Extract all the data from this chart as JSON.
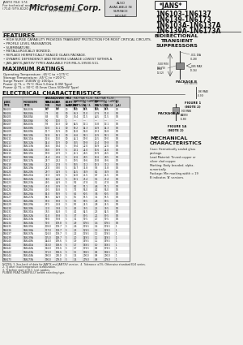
{
  "bg_color": "#f0f0ec",
  "company": "Microsemi Corp.",
  "header_small": "JANTX FILE 174\nFor technical assistance call\n(714) 979-8220",
  "stamp_text": "ALSO\nAVAILABLE IN\nSURFACE\nMOUNT",
  "jans_text": "*JANS*",
  "title_lines": [
    "1N6103-1N6137",
    "1N6139-1N6173",
    "1N6103A-1N6137A",
    "1N6139A-1N6173A"
  ],
  "subtitle": "BIDIRECTIONAL\nTRANSIENT\nSUPPRESSors",
  "features_title": "FEATURES",
  "features": [
    "HIGH SURGE CAPABILITY PROVIDES TRANSIENT PROTECTION FOR MOST CRITICAL CIRCUITS.",
    "PROFILE LEVEL PASSIVATION.",
    "SUBMINIATURE.",
    "METALLURGICALLY BONDED.",
    "REPLACE HERMETICALLY SEALED GLASS PACKAGE.",
    "DYNAMIC DEPENDENCY AND REVERSE LEAKAGE LOWEST WITHIN A.",
    "JAN-JANTX-JANTXV TYPES AVAILABLE FOR MIL-S-19500-511."
  ],
  "max_ratings_title": "MAXIMUM RATINGS",
  "max_ratings": [
    "Operating Temperature: -65°C to +175°C",
    "Storage Temperature: -65°C to +200°C",
    "Surge Power: 1500W @ 1000μs",
    "Power @ TL = 75°C (See 5.0mw 0.0W Type)",
    "Power @ TL = 50°C (0.5mw Class 500mW Type)"
  ],
  "elec_char_title": "ELECTRICAL CHARACTERISTICS",
  "notes": [
    "NOTES: 1. See back of data for JANTX and JANTXV version.  4. Tolerance ±1%. Otherwise standard E24 series.",
    "2. Tj after lead temperature stabilization.",
    "3. Tj before start of D.C. test applies.",
    "PLEASE READ CAREFULLY before selecting type."
  ],
  "mech_title": "MECHANICAL\nCHARACTERISTICS",
  "mech_text": "Case: Hermetically sealed glass\npackage.\nLead Material: Tinned copper or\nsilver clad copper.\nMarking: Body branded, alpha-\nnumerically.\nPackage: Min marking width = 19\nB indicates 'A' versions.",
  "table_col_headers": [
    "JEDEC",
    "MICROSEMI",
    "VBR MIN",
    "VBR MAX",
    "IT",
    "IPP",
    "VC",
    "IPP",
    "VC",
    "IR"
  ],
  "table_col_headers2": [
    "TYPE",
    "TYPE",
    "(V)",
    "(V)",
    "(mA)",
    "(A)",
    "(V)",
    "(A)",
    "(V)",
    "(μA)"
  ],
  "table_rows": [
    [
      "1N6103",
      "1N6103A",
      "6.7",
      "7.5",
      "10",
      "95.2",
      "10.5",
      "52.6",
      "10.5",
      "0.5"
    ],
    [
      "1N6104",
      "1N6104A",
      "7.3",
      "8.1",
      "10",
      "86.3",
      "11.0",
      "47.9",
      "11.0",
      "0.5"
    ],
    [
      "1N6105",
      "1N6105A",
      "8.3",
      "9.1",
      "10",
      "76.4",
      "11.5",
      "42.5",
      "11.5",
      "0.5"
    ],
    [
      "1N6106",
      "1N6106A",
      "9.0",
      "10.0",
      "1",
      "—",
      "—",
      "—",
      "—",
      "—"
    ],
    [
      "1N6107",
      "1N6107A",
      "9.3",
      "10.3",
      "10",
      "64.5",
      "13.1",
      "35.8",
      "13.1",
      "0.5"
    ],
    [
      "1N6108",
      "1N6108A",
      "10.0",
      "11.1",
      "10",
      "59.2",
      "14.3",
      "32.9",
      "14.3",
      "0.5"
    ],
    [
      "1N6109",
      "1N6109A",
      "11.7",
      "12.9",
      "10",
      "52.8",
      "16.8",
      "29.3",
      "16.8",
      "0.5"
    ],
    [
      "1N6110",
      "1N6110A",
      "12.8",
      "14.1",
      "10",
      "46.6",
      "18.1",
      "25.9",
      "18.1",
      "0.5"
    ],
    [
      "1N6111",
      "1N6111A",
      "13.6",
      "15.0",
      "10",
      "44.1",
      "19.0",
      "24.5",
      "19.0",
      "0.5"
    ],
    [
      "1N6112",
      "1N6112A",
      "14.4",
      "15.9",
      "10",
      "38.5",
      "19.8",
      "21.4",
      "19.8",
      "0.5"
    ],
    [
      "1N6113",
      "1N6113A",
      "16.6",
      "18.4",
      "5",
      "30.4",
      "22.0",
      "16.9",
      "22.0",
      "0.5"
    ],
    [
      "1N6114",
      "1N6114A",
      "18.0",
      "19.9",
      "5",
      "28.1",
      "24.0",
      "15.6",
      "24.0",
      "0.5"
    ],
    [
      "1N6115",
      "1N6115A",
      "19.8",
      "21.9",
      "5",
      "25.1",
      "26.5",
      "13.9",
      "26.5",
      "0.5"
    ],
    [
      "1N6116",
      "1N6116A",
      "21.4",
      "23.6",
      "5",
      "22.6",
      "28.5",
      "12.6",
      "28.5",
      "0.5"
    ],
    [
      "1N6117",
      "1N6117A",
      "23.7",
      "26.2",
      "5",
      "19.5",
      "30.6",
      "10.8",
      "30.6",
      "0.5"
    ],
    [
      "1N6118",
      "1N6118A",
      "25.2",
      "27.8",
      "5",
      "18.5",
      "33.2",
      "10.3",
      "33.2",
      "0.5"
    ],
    [
      "1N6119",
      "1N6119A",
      "27.0",
      "30.0",
      "5",
      "16.7",
      "35.8",
      "9.3",
      "35.8",
      "0.5"
    ],
    [
      "1N6120",
      "1N6120A",
      "29.7",
      "32.9",
      "5",
      "14.5",
      "38.9",
      "8.1",
      "38.9",
      "0.5"
    ],
    [
      "1N6121",
      "1N6121A",
      "33.3",
      "36.9",
      "5",
      "12.0",
      "41.5",
      "6.7",
      "41.5",
      "0.5"
    ],
    [
      "1N6122",
      "1N6122A",
      "38.5",
      "42.6",
      "5",
      "10.1",
      "45.4",
      "5.6",
      "45.4",
      "0.5"
    ],
    [
      "1N6123",
      "1N6123A",
      "40.5",
      "44.9",
      "5",
      "9.2",
      "47.8",
      "5.1",
      "47.8",
      "0.5"
    ],
    [
      "1N6124",
      "1N6124A",
      "45.0",
      "49.9",
      "5",
      "8.2",
      "51.1",
      "4.6",
      "51.1",
      "0.5"
    ],
    [
      "1N6125",
      "1N6125A",
      "49.5",
      "54.8",
      "5",
      "7.5",
      "56.0",
      "4.2",
      "56.0",
      "0.5"
    ],
    [
      "1N6126",
      "1N6126A",
      "54.0",
      "59.9",
      "5",
      "6.5",
      "60.5",
      "3.6",
      "60.5",
      "0.5"
    ],
    [
      "1N6127",
      "1N6127A",
      "58.5",
      "64.9",
      "5",
      "5.5",
      "65.5",
      "3.1",
      "65.5",
      "0.5"
    ],
    [
      "1N6128",
      "1N6128A",
      "63.0",
      "69.8",
      "5",
      "5.0",
      "69.5",
      "2.8",
      "69.5",
      "0.5"
    ],
    [
      "1N6129",
      "1N6129A",
      "67.5",
      "74.8",
      "5",
      "5.0",
      "74.5",
      "2.8",
      "74.5",
      "0.5"
    ],
    [
      "1N6130",
      "1N6130A",
      "72.0",
      "79.8",
      "5",
      "4.5",
      "79.5",
      "2.5",
      "79.5",
      "0.5"
    ],
    [
      "1N6131",
      "1N6131A",
      "76.5",
      "84.8",
      "5",
      "4.1",
      "84.5",
      "2.3",
      "84.5",
      "0.5"
    ],
    [
      "1N6132",
      "1N6132A",
      "81.0",
      "89.8",
      "5",
      "3.7",
      "89.5",
      "2.1",
      "89.5",
      "0.5"
    ],
    [
      "1N6133",
      "1N6133A",
      "90.0",
      "99.8",
      "5",
      "3.1",
      "99.5",
      "1.7",
      "99.5",
      "0.5"
    ],
    [
      "1N6134",
      "1N6134A",
      "99.0",
      "109.8",
      "5",
      "2.9",
      "109.5",
      "1.6",
      "109.5",
      "0.5"
    ],
    [
      "1N6135",
      "1N6135A",
      "108.0",
      "119.7",
      "5",
      "2.6",
      "119.5",
      "1.4",
      "119.5",
      "1"
    ],
    [
      "1N6136",
      "1N6136A",
      "117.0",
      "129.7",
      "5",
      "2.3",
      "129.5",
      "1.3",
      "129.5",
      "1"
    ],
    [
      "1N6137",
      "1N6137A",
      "126.0",
      "139.7",
      "5",
      "2.2",
      "139.5",
      "1.2",
      "139.5",
      "1"
    ],
    [
      "1N6139",
      "1N6139A",
      "135.0",
      "149.7",
      "5",
      "2.0",
      "149.5",
      "1.1",
      "149.5",
      "1"
    ],
    [
      "1N6140",
      "1N6140A",
      "144.0",
      "159.6",
      "5",
      "1.9",
      "159.5",
      "1.1",
      "159.5",
      "1"
    ],
    [
      "1N6141",
      "1N6141A",
      "153.0",
      "169.6",
      "5",
      "1.7",
      "169.5",
      "1.0",
      "169.5",
      "1"
    ],
    [
      "1N6142",
      "1N6142A",
      "162.0",
      "179.6",
      "5",
      "1.7",
      "179.5",
      "0.9",
      "179.5",
      "1"
    ],
    [
      "1N6143",
      "1N6143A",
      "171.0",
      "189.6",
      "5",
      "1.5",
      "189.5",
      "0.8",
      "189.5",
      "1"
    ],
    [
      "1N6144",
      "1N6144A",
      "180.0",
      "200.0",
      "5",
      "1.4",
      "200.0",
      "0.8",
      "200.0",
      "1"
    ],
    [
      "1N6173",
      "1N6173A",
      "190.0",
      "209.0",
      "5",
      "1.4",
      "209.0",
      "0.8",
      "209.0",
      "1"
    ]
  ]
}
